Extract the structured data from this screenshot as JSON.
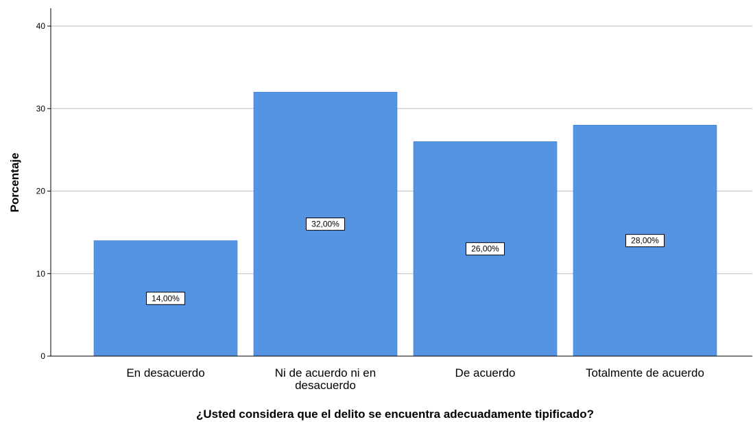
{
  "chart_data": {
    "type": "bar",
    "categories": [
      "En desacuerdo",
      "Ni de acuerdo ni en desacuerdo",
      "De acuerdo",
      "Totalmente de acuerdo"
    ],
    "category_lines": [
      [
        "En desacuerdo"
      ],
      [
        "Ni de acuerdo ni en",
        "desacuerdo"
      ],
      [
        "De acuerdo"
      ],
      [
        "Totalmente de acuerdo"
      ]
    ],
    "values": [
      14,
      32,
      26,
      28
    ],
    "data_labels": [
      "14,00%",
      "32,00%",
      "26,00%",
      "28,00%"
    ],
    "xlabel": "¿Usted considera que el delito se encuentra adecuadamente tipificado?",
    "ylabel": "Porcentaje",
    "ylim": [
      0,
      40
    ],
    "yticks": [
      0,
      10,
      20,
      30,
      40
    ],
    "grid": true,
    "bar_color": "#5594e3",
    "grid_color": "#c8c8c8"
  }
}
